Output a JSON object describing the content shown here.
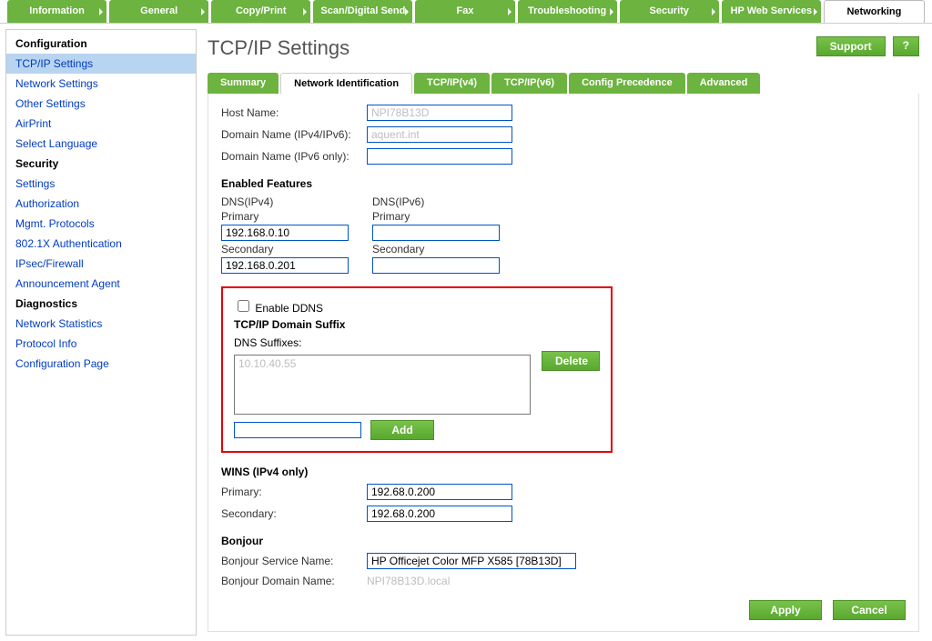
{
  "colors": {
    "green": "#6cb33f",
    "green_btn_top": "#78c24a",
    "green_btn_bottom": "#5aa82f",
    "link": "#003cbe",
    "highlight_border": "#e40000",
    "input_border": "#0054c7",
    "sidebar_active_bg": "#b8d4f0"
  },
  "top_tabs": [
    {
      "label": "Information",
      "active": false
    },
    {
      "label": "General",
      "active": false
    },
    {
      "label": "Copy/Print",
      "active": false
    },
    {
      "label": "Scan/Digital Send",
      "active": false
    },
    {
      "label": "Fax",
      "active": false
    },
    {
      "label": "Troubleshooting",
      "active": false
    },
    {
      "label": "Security",
      "active": false
    },
    {
      "label": "HP Web Services",
      "active": false
    },
    {
      "label": "Networking",
      "active": true
    }
  ],
  "top_right": {
    "support": "Support",
    "help": "?"
  },
  "sidebar": {
    "groups": [
      {
        "heading": "Configuration",
        "items": [
          {
            "label": "TCP/IP Settings",
            "active": true
          },
          {
            "label": "Network Settings"
          },
          {
            "label": "Other Settings"
          },
          {
            "label": "AirPrint"
          },
          {
            "label": "Select Language"
          }
        ]
      },
      {
        "heading": "Security",
        "items": [
          {
            "label": "Settings"
          },
          {
            "label": "Authorization"
          },
          {
            "label": "Mgmt. Protocols"
          },
          {
            "label": "802.1X Authentication"
          },
          {
            "label": "IPsec/Firewall"
          },
          {
            "label": "Announcement Agent"
          }
        ]
      },
      {
        "heading": "Diagnostics",
        "items": [
          {
            "label": "Network Statistics"
          },
          {
            "label": "Protocol Info"
          },
          {
            "label": "Configuration Page"
          }
        ]
      }
    ]
  },
  "page_title": "TCP/IP Settings",
  "sub_tabs": [
    {
      "label": "Summary"
    },
    {
      "label": "Network Identification",
      "active": true
    },
    {
      "label": "TCP/IP(v4)"
    },
    {
      "label": "TCP/IP(v6)"
    },
    {
      "label": "Config Precedence"
    },
    {
      "label": "Advanced"
    }
  ],
  "form": {
    "host_name_label": "Host Name:",
    "host_name_value": "NPI78B13D",
    "domain_v4v6_label": "Domain Name (IPv4/IPv6):",
    "domain_v4v6_value": "aquent.int",
    "domain_v6_label": "Domain Name (IPv6 only):",
    "domain_v6_value": "",
    "enabled_features_heading": "Enabled Features",
    "dns_v4_heading": "DNS(IPv4)",
    "dns_v6_heading": "DNS(IPv6)",
    "primary_label": "Primary",
    "secondary_label": "Secondary",
    "dns_v4_primary": "192.168.0.10",
    "dns_v4_secondary": "192.168.0.201",
    "dns_v6_primary": "",
    "dns_v6_secondary": "",
    "enable_ddns_label": "Enable DDNS",
    "enable_ddns_checked": false,
    "domain_suffix_heading": "TCP/IP Domain Suffix",
    "dns_suffixes_label": "DNS Suffixes:",
    "suffix_entries": [
      "10.10.40.55"
    ],
    "add_input_value": "",
    "add_label": "Add",
    "delete_label": "Delete",
    "wins_heading": "WINS (IPv4 only)",
    "wins_primary_label": "Primary:",
    "wins_primary_value": "192.68.0.200",
    "wins_secondary_label": "Secondary:",
    "wins_secondary_value": "192.68.0.200",
    "bonjour_heading": "Bonjour",
    "bonjour_service_label": "Bonjour Service Name:",
    "bonjour_service_value": "HP Officejet Color MFP X585 [78B13D]",
    "bonjour_domain_label": "Bonjour Domain Name:",
    "bonjour_domain_value": "NPI78B13D.local"
  },
  "buttons": {
    "apply": "Apply",
    "cancel": "Cancel"
  }
}
